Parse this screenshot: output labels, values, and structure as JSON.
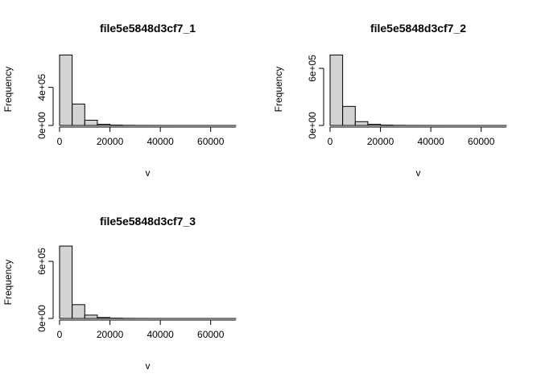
{
  "chart_data": [
    {
      "type": "bar",
      "title": "file5e5848d3cf7_1",
      "xlabel": "v",
      "ylabel": "Frequency",
      "xlim": [
        0,
        70000
      ],
      "ylim": [
        0,
        760000
      ],
      "x_ticks": [
        0,
        20000,
        40000,
        60000
      ],
      "x_tick_labels": [
        "0",
        "20000",
        "40000",
        "60000"
      ],
      "y_ticks": [
        0,
        400000
      ],
      "y_tick_labels": [
        "0e+00",
        "4e+05"
      ],
      "bin_width": 5000,
      "bin_starts": [
        0,
        5000,
        10000,
        15000,
        20000,
        25000,
        30000,
        35000,
        40000,
        45000,
        50000,
        55000,
        60000,
        65000
      ],
      "values": [
        740000,
        225000,
        55000,
        12000,
        4000,
        1500,
        700,
        300,
        150,
        80,
        40,
        20,
        10,
        5
      ]
    },
    {
      "type": "bar",
      "title": "file5e5848d3cf7_2",
      "xlabel": "v",
      "ylabel": "Frequency",
      "xlim": [
        0,
        70000
      ],
      "ylim": [
        0,
        760000
      ],
      "x_ticks": [
        0,
        20000,
        40000,
        60000
      ],
      "x_tick_labels": [
        "0",
        "20000",
        "40000",
        "60000"
      ],
      "y_ticks": [
        0,
        600000
      ],
      "y_tick_labels": [
        "0e+00",
        "6e+05"
      ],
      "bin_width": 5000,
      "bin_starts": [
        0,
        5000,
        10000,
        15000,
        20000,
        25000,
        30000,
        35000,
        40000,
        45000,
        50000,
        55000,
        60000,
        65000
      ],
      "values": [
        740000,
        200000,
        40000,
        12000,
        4000,
        1500,
        700,
        300,
        150,
        80,
        40,
        20,
        10,
        5
      ]
    },
    {
      "type": "bar",
      "title": "file5e5848d3cf7_3",
      "xlabel": "v",
      "ylabel": "Frequency",
      "xlim": [
        0,
        70000
      ],
      "ylim": [
        0,
        760000
      ],
      "x_ticks": [
        0,
        20000,
        40000,
        60000
      ],
      "x_tick_labels": [
        "0",
        "20000",
        "40000",
        "60000"
      ],
      "y_ticks": [
        0,
        600000
      ],
      "y_tick_labels": [
        "0e+00",
        "6e+05"
      ],
      "bin_width": 5000,
      "bin_starts": [
        0,
        5000,
        10000,
        15000,
        20000,
        25000,
        30000,
        35000,
        40000,
        45000,
        50000,
        55000,
        60000,
        65000
      ],
      "values": [
        760000,
        145000,
        35000,
        10000,
        3000,
        1200,
        600,
        250,
        120,
        60,
        30,
        15,
        8,
        4
      ]
    }
  ]
}
